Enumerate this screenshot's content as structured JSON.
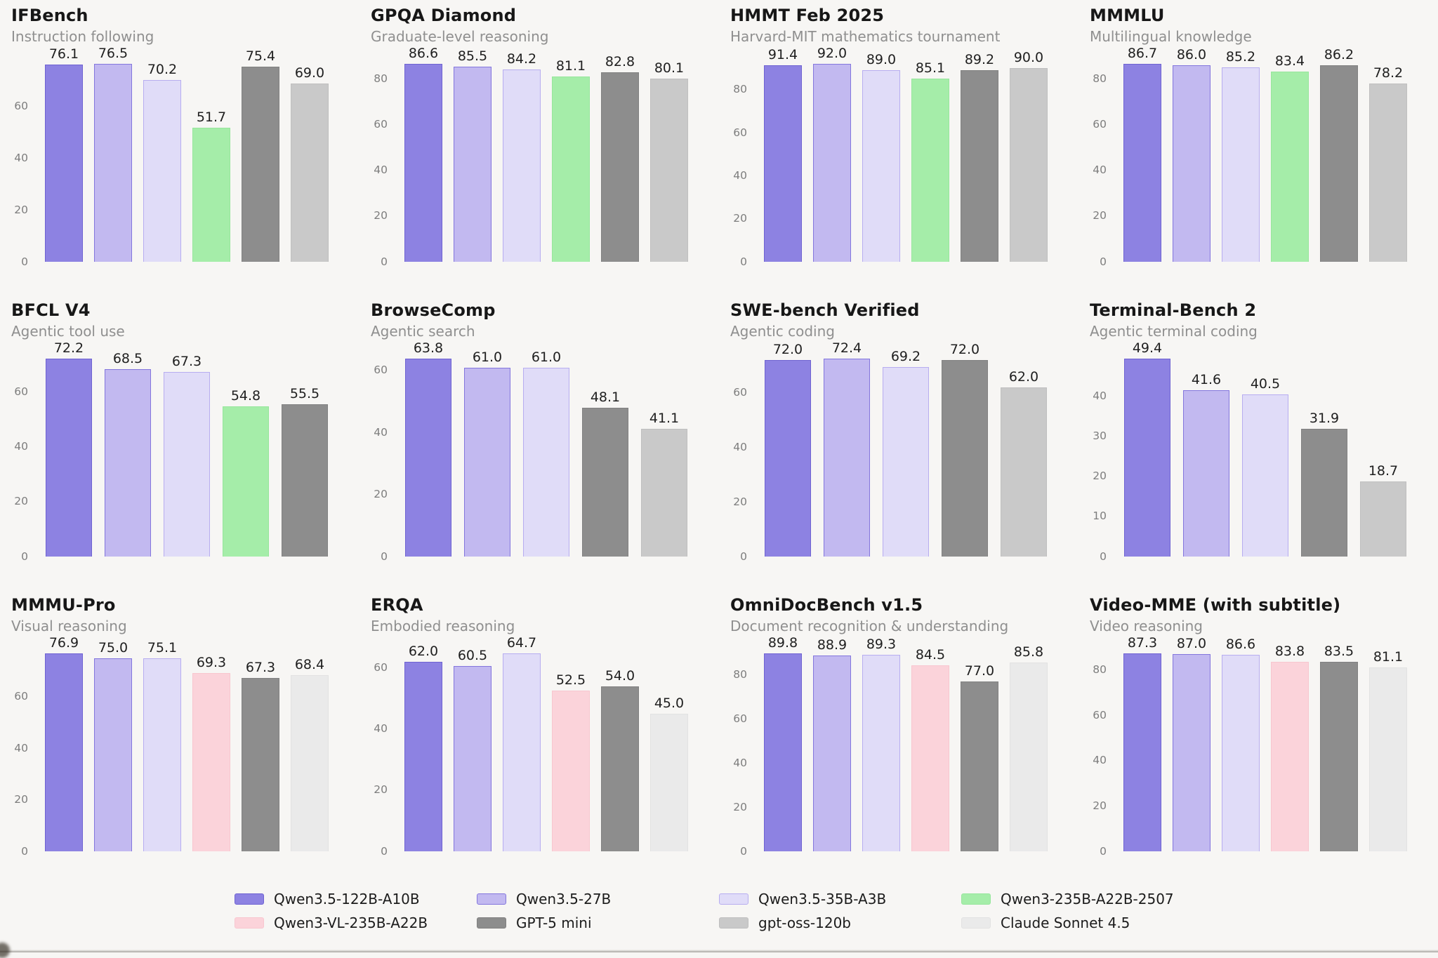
{
  "page": {
    "background": "#f7f6f4"
  },
  "legend": {
    "series": [
      {
        "name": "Qwen3.5-122B-A10B",
        "color": "#8d82e2",
        "border": "#6f63d2"
      },
      {
        "name": "Qwen3.5-27B",
        "color": "#c2b9f0",
        "border": "#8376dd"
      },
      {
        "name": "Qwen3.5-35B-A3B",
        "color": "#e0dcf8",
        "border": "#b7adf0"
      },
      {
        "name": "Qwen3-235B-A22B-2507",
        "color": "#a5eda9",
        "border": "#97e69c"
      },
      {
        "name": "Qwen3-VL-235B-A22B",
        "color": "#fbd3da",
        "border": "#f8c6cf"
      },
      {
        "name": "GPT-5 mini",
        "color": "#8d8d8d",
        "border": "#818181"
      },
      {
        "name": "gpt-oss-120b",
        "color": "#c9c9c9",
        "border": "#bfbfbf"
      },
      {
        "name": "Claude Sonnet 4.5",
        "color": "#eaeaea",
        "border": "#e2e2e2"
      }
    ]
  },
  "chart_data": [
    {
      "type": "bar",
      "title": "IFBench",
      "subtitle": "Instruction following",
      "models": [
        0,
        1,
        2,
        3,
        5,
        6
      ],
      "categories": [
        "Qwen3.5-122B-A10B",
        "Qwen3.5-27B",
        "Qwen3.5-35B-A3B",
        "Qwen3-235B-A22B-2507",
        "GPT-5 mini",
        "gpt-oss-120b"
      ],
      "values": [
        76.1,
        76.5,
        70.2,
        51.7,
        75.4,
        69.0
      ],
      "yticks": [
        0,
        20,
        40,
        60
      ],
      "ylim": [
        0,
        80.3
      ],
      "grid": false
    },
    {
      "type": "bar",
      "title": "GPQA Diamond",
      "subtitle": "Graduate-level reasoning",
      "models": [
        0,
        1,
        2,
        3,
        5,
        6
      ],
      "categories": [
        "Qwen3.5-122B-A10B",
        "Qwen3.5-27B",
        "Qwen3.5-35B-A3B",
        "Qwen3-235B-A22B-2507",
        "GPT-5 mini",
        "gpt-oss-120b"
      ],
      "values": [
        86.6,
        85.5,
        84.2,
        81.1,
        82.8,
        80.1
      ],
      "yticks": [
        0,
        20,
        40,
        60,
        80
      ],
      "ylim": [
        0,
        90.9
      ],
      "grid": false
    },
    {
      "type": "bar",
      "title": "HMMT Feb 2025",
      "subtitle": "Harvard-MIT mathematics tournament",
      "models": [
        0,
        1,
        2,
        3,
        5,
        6
      ],
      "categories": [
        "Qwen3.5-122B-A10B",
        "Qwen3.5-27B",
        "Qwen3.5-35B-A3B",
        "Qwen3-235B-A22B-2507",
        "GPT-5 mini",
        "gpt-oss-120b"
      ],
      "values": [
        91.4,
        92.0,
        89.0,
        85.1,
        89.2,
        90.0
      ],
      "yticks": [
        0,
        20,
        40,
        60,
        80
      ],
      "ylim": [
        0,
        96.6
      ],
      "grid": false
    },
    {
      "type": "bar",
      "title": "MMMLU",
      "subtitle": "Multilingual knowledge",
      "models": [
        0,
        1,
        2,
        3,
        5,
        6
      ],
      "categories": [
        "Qwen3.5-122B-A10B",
        "Qwen3.5-27B",
        "Qwen3.5-35B-A3B",
        "Qwen3-235B-A22B-2507",
        "GPT-5 mini",
        "gpt-oss-120b"
      ],
      "values": [
        86.7,
        86.0,
        85.2,
        83.4,
        86.2,
        78.2
      ],
      "yticks": [
        0,
        20,
        40,
        60,
        80
      ],
      "ylim": [
        0,
        91.0
      ],
      "grid": false
    },
    {
      "type": "bar",
      "title": "BFCL V4",
      "subtitle": "Agentic tool use",
      "models": [
        0,
        1,
        2,
        3,
        5
      ],
      "categories": [
        "Qwen3.5-122B-A10B",
        "Qwen3.5-27B",
        "Qwen3.5-35B-A3B",
        "Qwen3-235B-A22B-2507",
        "GPT-5 mini"
      ],
      "values": [
        72.2,
        68.5,
        67.3,
        54.8,
        55.5
      ],
      "yticks": [
        0,
        20,
        40,
        60
      ],
      "ylim": [
        0,
        75.8
      ],
      "grid": false
    },
    {
      "type": "bar",
      "title": "BrowseComp",
      "subtitle": "Agentic search",
      "models": [
        0,
        1,
        2,
        5,
        6
      ],
      "categories": [
        "Qwen3.5-122B-A10B",
        "Qwen3.5-27B",
        "Qwen3.5-35B-A3B",
        "GPT-5 mini",
        "gpt-oss-120b"
      ],
      "values": [
        63.8,
        61.0,
        61.0,
        48.1,
        41.1
      ],
      "yticks": [
        0,
        20,
        40,
        60
      ],
      "ylim": [
        0,
        67.0
      ],
      "grid": false
    },
    {
      "type": "bar",
      "title": "SWE-bench Verified",
      "subtitle": "Agentic coding",
      "models": [
        0,
        1,
        2,
        5,
        6
      ],
      "categories": [
        "Qwen3.5-122B-A10B",
        "Qwen3.5-27B",
        "Qwen3.5-35B-A3B",
        "GPT-5 mini",
        "gpt-oss-120b"
      ],
      "values": [
        72.0,
        72.4,
        69.2,
        72.0,
        62.0
      ],
      "yticks": [
        0,
        20,
        40,
        60
      ],
      "ylim": [
        0,
        76.0
      ],
      "grid": false
    },
    {
      "type": "bar",
      "title": "Terminal-Bench 2",
      "subtitle": "Agentic terminal coding",
      "models": [
        0,
        1,
        2,
        5,
        6
      ],
      "categories": [
        "Qwen3.5-122B-A10B",
        "Qwen3.5-27B",
        "Qwen3.5-35B-A3B",
        "GPT-5 mini",
        "gpt-oss-120b"
      ],
      "values": [
        49.4,
        41.6,
        40.5,
        31.9,
        18.7
      ],
      "yticks": [
        0,
        10,
        20,
        30,
        40
      ],
      "ylim": [
        0,
        51.9
      ],
      "grid": false
    },
    {
      "type": "bar",
      "title": "MMMU-Pro",
      "subtitle": "Visual reasoning",
      "models": [
        0,
        1,
        2,
        4,
        5,
        7
      ],
      "categories": [
        "Qwen3.5-122B-A10B",
        "Qwen3.5-27B",
        "Qwen3.5-35B-A3B",
        "Qwen3-VL-235B-A22B",
        "GPT-5 mini",
        "Claude Sonnet 4.5"
      ],
      "values": [
        76.9,
        75.0,
        75.1,
        69.3,
        67.3,
        68.4
      ],
      "yticks": [
        0,
        20,
        40,
        60
      ],
      "ylim": [
        0,
        80.7
      ],
      "grid": false
    },
    {
      "type": "bar",
      "title": "ERQA",
      "subtitle": "Embodied reasoning",
      "models": [
        0,
        1,
        2,
        4,
        5,
        7
      ],
      "categories": [
        "Qwen3.5-122B-A10B",
        "Qwen3.5-27B",
        "Qwen3.5-35B-A3B",
        "Qwen3-VL-235B-A22B",
        "GPT-5 mini",
        "Claude Sonnet 4.5"
      ],
      "values": [
        62.0,
        60.5,
        64.7,
        52.5,
        54.0,
        45.0
      ],
      "yticks": [
        0,
        20,
        40,
        60
      ],
      "ylim": [
        0,
        67.9
      ],
      "grid": false
    },
    {
      "type": "bar",
      "title": "OmniDocBench v1.5",
      "subtitle": "Document recognition & understanding",
      "models": [
        0,
        1,
        2,
        4,
        5,
        7
      ],
      "categories": [
        "Qwen3.5-122B-A10B",
        "Qwen3.5-27B",
        "Qwen3.5-35B-A3B",
        "Qwen3-VL-235B-A22B",
        "GPT-5 mini",
        "Claude Sonnet 4.5"
      ],
      "values": [
        89.8,
        88.9,
        89.3,
        84.5,
        77.0,
        85.8
      ],
      "yticks": [
        0,
        20,
        40,
        60,
        80
      ],
      "ylim": [
        0,
        94.3
      ],
      "grid": false
    },
    {
      "type": "bar",
      "title": "Video-MME (with subtitle)",
      "subtitle": "Video reasoning",
      "models": [
        0,
        1,
        2,
        4,
        5,
        7
      ],
      "categories": [
        "Qwen3.5-122B-A10B",
        "Qwen3.5-27B",
        "Qwen3.5-35B-A3B",
        "Qwen3-VL-235B-A22B",
        "GPT-5 mini",
        "Claude Sonnet 4.5"
      ],
      "values": [
        87.3,
        87.0,
        86.6,
        83.8,
        83.5,
        81.1
      ],
      "yticks": [
        0,
        20,
        40,
        60,
        80
      ],
      "ylim": [
        0,
        91.7
      ],
      "grid": false
    }
  ]
}
